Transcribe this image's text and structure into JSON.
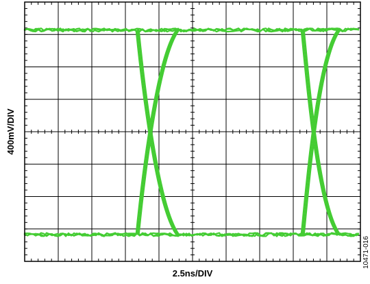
{
  "chart_data": {
    "type": "line",
    "subtype": "eye-diagram",
    "title": "",
    "xlabel": "2.5ns/DIV",
    "ylabel": "400mV/DIV",
    "figure_id": "10471-016",
    "grid": true,
    "divisions": {
      "x": 10,
      "y": 8
    },
    "x_units_per_div": 2.5,
    "y_units_per_div": 400,
    "xlim_ns": [
      0,
      25
    ],
    "ylim_mV": [
      -1600,
      1600
    ],
    "high_level_mV": 1255,
    "low_level_mV": -1270,
    "eye_crossings_ns": [
      {
        "x": 8.9,
        "y_mV": 140
      },
      {
        "x": 21.5,
        "y_mV": 40
      }
    ],
    "transition_start_ns": [
      8.4,
      20.7
    ],
    "transition_end_ns": [
      11.4,
      23.4
    ],
    "trace_color": "#44cc33"
  }
}
